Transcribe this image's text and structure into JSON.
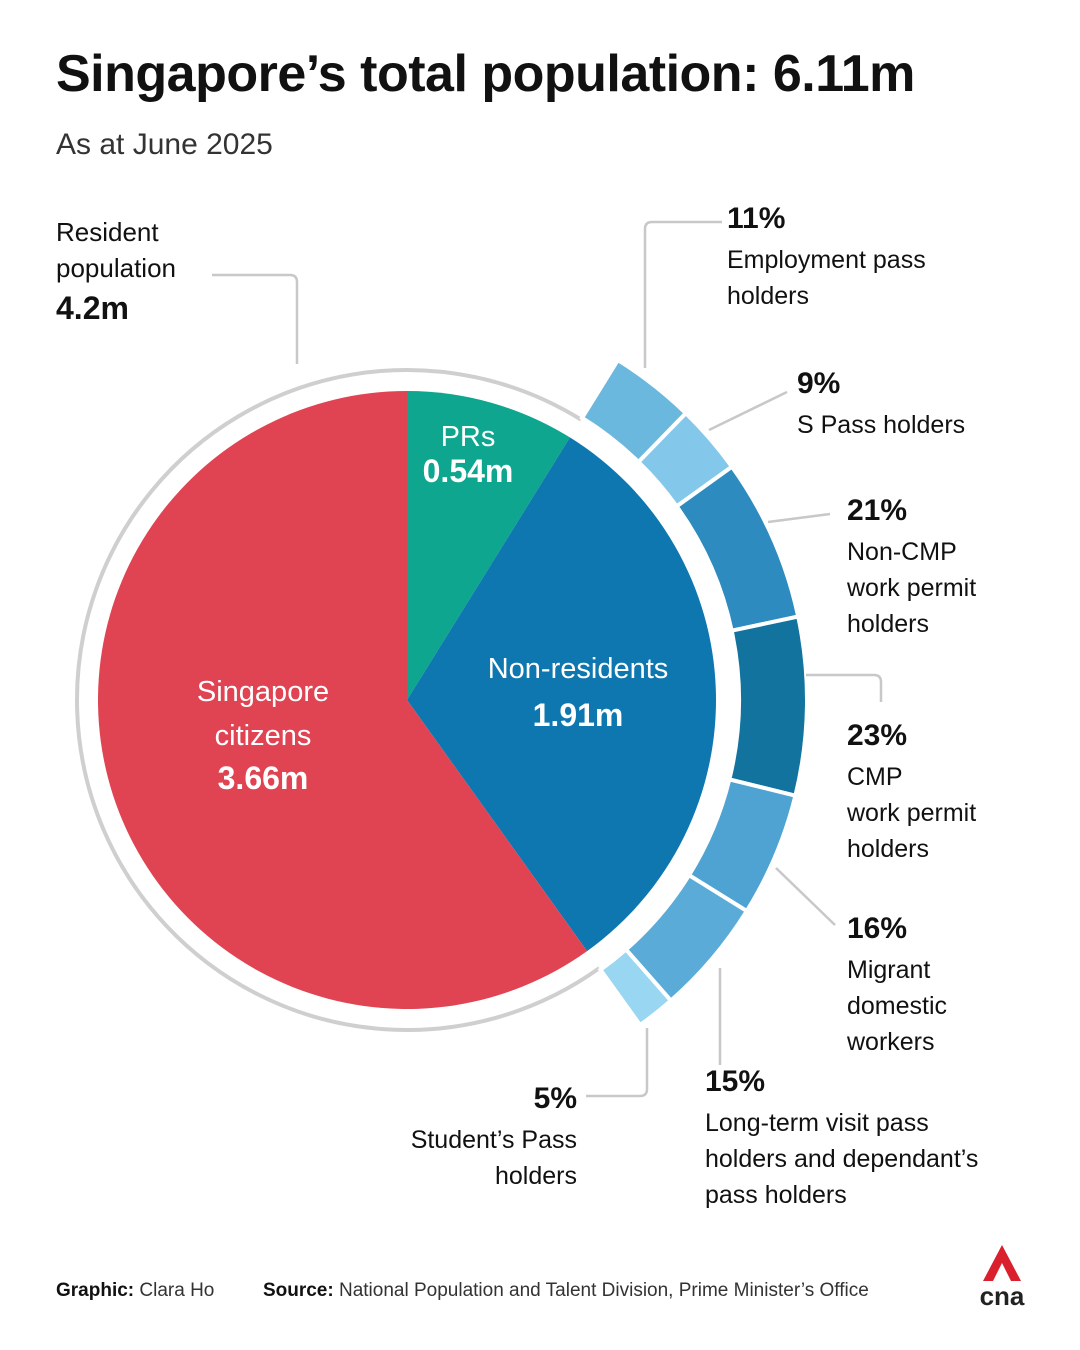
{
  "header": {
    "title": "Singapore’s total population: 6.11m",
    "subtitle": "As at June 2025"
  },
  "chart_data": {
    "type": "pie",
    "title": "Singapore’s total population: 6.11m",
    "subtitle": "As at June 2025",
    "total_label": "6.11m",
    "resident": {
      "label_lines": [
        "Resident",
        "population"
      ],
      "value": 4.2,
      "value_label": "4.2m"
    },
    "slices": [
      {
        "id": "prs",
        "label_lines": [
          "PRs"
        ],
        "value": 0.54,
        "value_label": "0.54m",
        "color": "#0ea68e"
      },
      {
        "id": "non-residents",
        "label_lines": [
          "Non-residents"
        ],
        "value": 1.91,
        "value_label": "1.91m",
        "color": "#0e77b0"
      },
      {
        "id": "citizens",
        "label_lines": [
          "Singapore",
          "citizens"
        ],
        "value": 3.66,
        "value_label": "3.66m",
        "color": "#e04452"
      }
    ],
    "non_resident_breakdown": [
      {
        "id": "employment-pass",
        "percent": 11,
        "percent_label": "11%",
        "label_lines": [
          "Employment pass",
          "holders"
        ],
        "color": "#6bb8df"
      },
      {
        "id": "s-pass",
        "percent": 9,
        "percent_label": "9%",
        "label_lines": [
          "S Pass holders"
        ],
        "color": "#83c8ea"
      },
      {
        "id": "non-cmp-work-permit",
        "percent": 21,
        "percent_label": "21%",
        "label_lines": [
          "Non-CMP",
          "work permit",
          "holders"
        ],
        "color": "#2d8bbf"
      },
      {
        "id": "cmp-work-permit",
        "percent": 23,
        "percent_label": "23%",
        "label_lines": [
          "CMP",
          "work permit",
          "holders"
        ],
        "color": "#12739f"
      },
      {
        "id": "migrant-domestic-workers",
        "percent": 16,
        "percent_label": "16%",
        "label_lines": [
          "Migrant",
          "domestic",
          "workers"
        ],
        "color": "#4ea3d2"
      },
      {
        "id": "long-term-visit-pass",
        "percent": 15,
        "percent_label": "15%",
        "label_lines": [
          "Long-term visit pass",
          "holders and dependant’s",
          "pass holders"
        ],
        "color": "#5aabd8"
      },
      {
        "id": "students-pass",
        "percent": 5,
        "percent_label": "5%",
        "label_lines": [
          "Student’s Pass",
          "holders"
        ],
        "color": "#98d6f2"
      }
    ]
  },
  "footer": {
    "graphic_label": "Graphic:",
    "graphic_value": "Clara Ho",
    "source_label": "Source:",
    "source_value": "National Population and Talent Division, Prime Minister’s Office"
  },
  "logo": {
    "text": "cna",
    "color": "#d9202c"
  }
}
